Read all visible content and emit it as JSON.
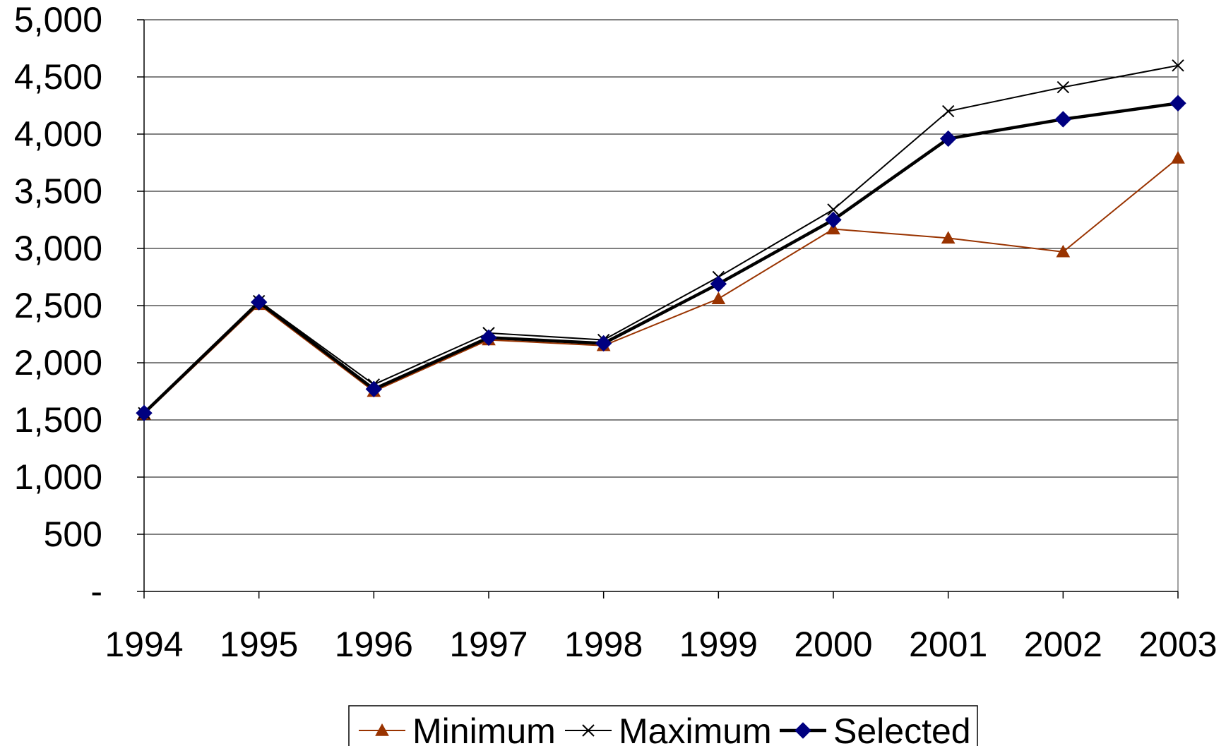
{
  "chart_data": {
    "type": "line",
    "title": "",
    "xlabel": "",
    "ylabel": "",
    "categories": [
      "1994",
      "1995",
      "1996",
      "1997",
      "1998",
      "1999",
      "2000",
      "2001",
      "2002",
      "2003"
    ],
    "y_ticks": [
      {
        "value": 0,
        "label": "-"
      },
      {
        "value": 500,
        "label": "500"
      },
      {
        "value": 1000,
        "label": "1,000"
      },
      {
        "value": 1500,
        "label": "1,500"
      },
      {
        "value": 2000,
        "label": "2,000"
      },
      {
        "value": 2500,
        "label": "2,500"
      },
      {
        "value": 3000,
        "label": "3,000"
      },
      {
        "value": 3500,
        "label": "3,500"
      },
      {
        "value": 4000,
        "label": "4,000"
      },
      {
        "value": 4500,
        "label": "4,500"
      },
      {
        "value": 5000,
        "label": "5,000"
      }
    ],
    "ylim": [
      0,
      5000
    ],
    "grid": true,
    "legend_position": "bottom",
    "series": [
      {
        "name": "Minimum",
        "color": "#993300",
        "marker": "triangle",
        "values": [
          1550,
          2510,
          1750,
          2200,
          2150,
          2560,
          3170,
          3090,
          2970,
          3790
        ]
      },
      {
        "name": "Maximum",
        "color": "#000000",
        "marker": "x",
        "values": [
          1560,
          2540,
          1810,
          2260,
          2200,
          2750,
          3340,
          4200,
          4410,
          4600
        ]
      },
      {
        "name": "Selected",
        "color": "#000000",
        "marker_color": "#000080",
        "marker": "diamond",
        "values": [
          1560,
          2530,
          1770,
          2220,
          2170,
          2690,
          3250,
          3960,
          4130,
          4270
        ]
      }
    ]
  }
}
